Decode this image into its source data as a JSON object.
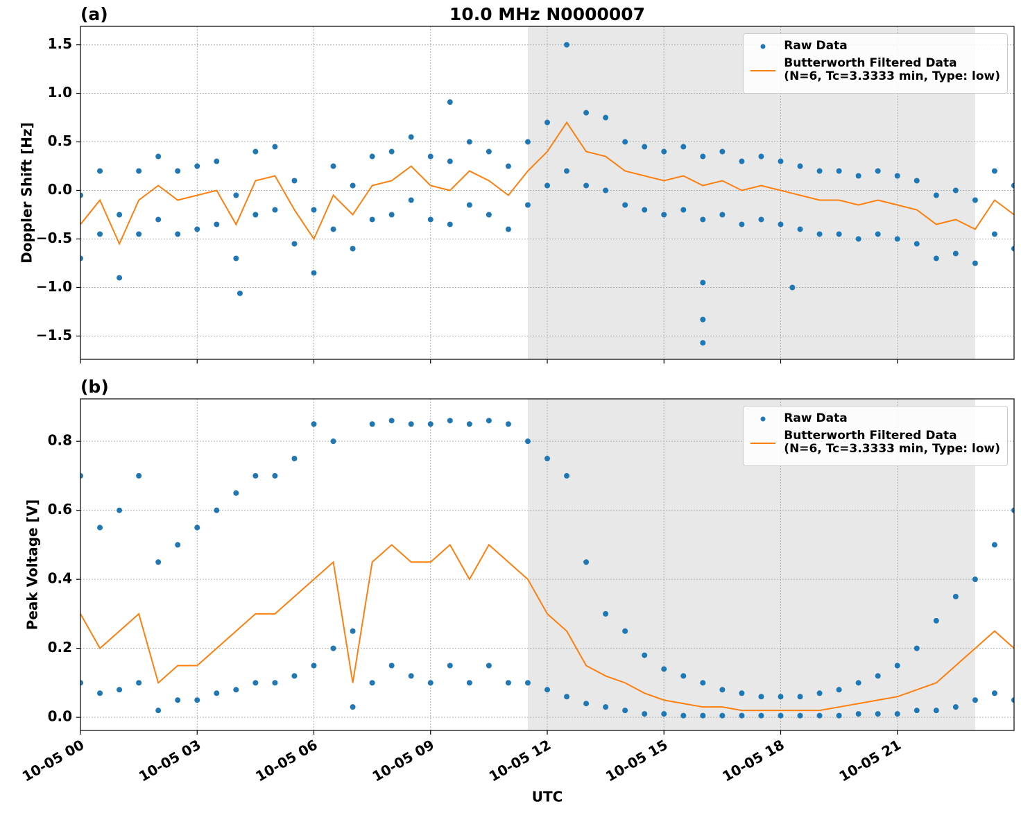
{
  "chart_data": [
    {
      "type": "scatter",
      "title": "10.0 MHz N0000007",
      "panel_label": "(a)",
      "ylabel": "Doppler Shift [Hz]",
      "xlim": [
        0,
        24
      ],
      "xticks": [
        0,
        3,
        6,
        9,
        12,
        15,
        18,
        21
      ],
      "ylim": [
        -1.74,
        1.69
      ],
      "yticks": [
        {
          "value": -1.5,
          "label": "−1.5"
        },
        {
          "value": -1.0,
          "label": "−1.0"
        },
        {
          "value": -0.5,
          "label": "−0.5"
        },
        {
          "value": 0,
          "label": "0.0"
        },
        {
          "value": 0.5,
          "label": "0.5"
        },
        {
          "value": 1.0,
          "label": "1.0"
        },
        {
          "value": 1.5,
          "label": "1.5"
        }
      ],
      "grid": true,
      "legend": "upper right",
      "shade": [
        11.5,
        23
      ],
      "shade_color": "#e8e8e8",
      "series": [
        {
          "name": "Raw Data",
          "style": "markers",
          "color": "#1f77b4",
          "x": [
            0,
            0.5,
            1,
            1.5,
            2,
            2.5,
            3,
            3.5,
            4,
            4.5,
            5,
            5.5,
            6,
            6.5,
            7,
            7.5,
            8,
            8.5,
            9,
            9.5,
            10,
            10.5,
            11,
            11.5,
            12,
            12.5,
            13,
            13.5,
            14,
            14.5,
            15,
            15.5,
            16,
            16.5,
            17,
            17.5,
            18,
            18.5,
            19,
            19.5,
            20,
            20.5,
            21,
            21.5,
            22,
            22.5,
            23,
            23.5,
            24,
            0,
            0.5,
            1,
            1.5,
            2,
            2.5,
            3,
            3.5,
            4,
            4.5,
            5,
            5.5,
            6,
            6.5,
            7,
            7.5,
            8,
            8.5,
            9,
            9.5,
            10,
            10.5,
            11,
            11.5,
            12,
            12.5,
            13,
            13.5,
            14,
            14.5,
            15,
            15.5,
            16,
            16.5,
            17,
            17.5,
            18,
            18.5,
            19,
            19.5,
            20,
            20.5,
            21,
            21.5,
            22,
            22.5,
            23,
            23.5,
            24,
            16,
            16,
            16,
            4.1,
            9.5,
            18.3
          ],
          "values": [
            -0.05,
            0.2,
            -0.25,
            0.2,
            0.35,
            0.2,
            0.25,
            0.3,
            -0.05,
            0.4,
            0.45,
            0.1,
            -0.2,
            0.25,
            0.05,
            0.35,
            0.4,
            0.55,
            0.35,
            0.3,
            0.5,
            0.4,
            0.25,
            0.5,
            0.7,
            1.5,
            0.8,
            0.75,
            0.5,
            0.45,
            0.4,
            0.45,
            0.35,
            0.4,
            0.3,
            0.35,
            0.3,
            0.25,
            0.2,
            0.2,
            0.15,
            0.2,
            0.15,
            0.1,
            -0.05,
            0.0,
            -0.1,
            0.2,
            0.05,
            -0.7,
            -0.45,
            -0.9,
            -0.45,
            -0.3,
            -0.45,
            -0.4,
            -0.35,
            -0.7,
            -0.25,
            -0.2,
            -0.55,
            -0.85,
            -0.4,
            -0.6,
            -0.3,
            -0.25,
            -0.1,
            -0.3,
            -0.35,
            -0.15,
            -0.25,
            -0.4,
            -0.15,
            0.05,
            0.2,
            0.05,
            0.0,
            -0.15,
            -0.2,
            -0.25,
            -0.2,
            -0.3,
            -0.25,
            -0.35,
            -0.3,
            -0.35,
            -0.4,
            -0.45,
            -0.45,
            -0.5,
            -0.45,
            -0.5,
            -0.55,
            -0.7,
            -0.65,
            -0.75,
            -0.45,
            -0.6,
            -1.57,
            -1.33,
            -0.95,
            -1.06,
            0.91,
            -1.0
          ]
        },
        {
          "name": "Butterworth Filtered Data\n(N=6, Tc=3.3333 min, Type: low)",
          "style": "line",
          "color": "#ff7f0e",
          "x": [
            0,
            0.5,
            1,
            1.5,
            2,
            2.5,
            3,
            3.5,
            4,
            4.5,
            5,
            5.5,
            6,
            6.5,
            7,
            7.5,
            8,
            8.5,
            9,
            9.5,
            10,
            10.5,
            11,
            11.5,
            12,
            12.5,
            13,
            13.5,
            14,
            14.5,
            15,
            15.5,
            16,
            16.5,
            17,
            17.5,
            18,
            18.5,
            19,
            19.5,
            20,
            20.5,
            21,
            21.5,
            22,
            22.5,
            23,
            23.5,
            24
          ],
          "values": [
            -0.35,
            -0.1,
            -0.55,
            -0.1,
            0.05,
            -0.1,
            -0.05,
            0.0,
            -0.35,
            0.1,
            0.15,
            -0.2,
            -0.5,
            -0.05,
            -0.25,
            0.05,
            0.1,
            0.25,
            0.05,
            0.0,
            0.2,
            0.1,
            -0.05,
            0.2,
            0.4,
            0.7,
            0.4,
            0.35,
            0.2,
            0.15,
            0.1,
            0.15,
            0.05,
            0.1,
            0.0,
            0.05,
            0.0,
            -0.05,
            -0.1,
            -0.1,
            -0.15,
            -0.1,
            -0.15,
            -0.2,
            -0.35,
            -0.3,
            -0.4,
            -0.1,
            -0.25
          ]
        }
      ]
    },
    {
      "type": "scatter",
      "panel_label": "(b)",
      "ylabel": "Peak Voltage [V]",
      "xlabel": "UTC",
      "xlim": [
        0,
        24
      ],
      "xticks": [
        {
          "value": 0,
          "label": "10-05 00"
        },
        {
          "value": 3,
          "label": "10-05 03"
        },
        {
          "value": 6,
          "label": "10-05 06"
        },
        {
          "value": 9,
          "label": "10-05 09"
        },
        {
          "value": 12,
          "label": "10-05 12"
        },
        {
          "value": 15,
          "label": "10-05 15"
        },
        {
          "value": 18,
          "label": "10-05 18"
        },
        {
          "value": 21,
          "label": "10-05 21"
        }
      ],
      "ylim": [
        -0.038,
        0.923
      ],
      "yticks": [
        {
          "value": 0,
          "label": "0.0"
        },
        {
          "value": 0.2,
          "label": "0.2"
        },
        {
          "value": 0.4,
          "label": "0.4"
        },
        {
          "value": 0.6,
          "label": "0.6"
        },
        {
          "value": 0.8,
          "label": "0.8"
        }
      ],
      "grid": true,
      "legend": "upper right",
      "shade": [
        11.5,
        23
      ],
      "shade_color": "#e8e8e8",
      "series": [
        {
          "name": "Raw Data",
          "style": "markers",
          "color": "#1f77b4",
          "x": [
            0,
            0.5,
            1,
            1.5,
            2,
            2.5,
            3,
            3.5,
            4,
            4.5,
            5,
            5.5,
            6,
            6.5,
            7,
            7.5,
            8,
            8.5,
            9,
            9.5,
            10,
            10.5,
            11,
            11.5,
            12,
            12.5,
            13,
            13.5,
            14,
            14.5,
            15,
            15.5,
            16,
            16.5,
            17,
            17.5,
            18,
            18.5,
            19,
            19.5,
            20,
            20.5,
            21,
            21.5,
            22,
            22.5,
            23,
            23.5,
            24,
            0,
            0.5,
            1,
            1.5,
            2,
            2.5,
            3,
            3.5,
            4,
            4.5,
            5,
            5.5,
            6,
            6.5,
            7,
            7.5,
            8,
            8.5,
            9,
            9.5,
            10,
            10.5,
            11,
            11.5,
            12,
            12.5,
            13,
            13.5,
            14,
            14.5,
            15,
            15.5,
            16,
            16.5,
            17,
            17.5,
            18,
            18.5,
            19,
            19.5,
            20,
            20.5,
            21,
            21.5,
            22,
            22.5,
            23,
            23.5,
            24
          ],
          "values": [
            0.7,
            0.55,
            0.6,
            0.7,
            0.45,
            0.5,
            0.55,
            0.6,
            0.65,
            0.7,
            0.7,
            0.75,
            0.85,
            0.8,
            0.25,
            0.85,
            0.86,
            0.85,
            0.85,
            0.86,
            0.85,
            0.86,
            0.85,
            0.8,
            0.75,
            0.7,
            0.45,
            0.3,
            0.25,
            0.18,
            0.14,
            0.12,
            0.1,
            0.08,
            0.07,
            0.06,
            0.06,
            0.06,
            0.07,
            0.08,
            0.1,
            0.12,
            0.15,
            0.2,
            0.28,
            0.35,
            0.4,
            0.5,
            0.6,
            0.1,
            0.07,
            0.08,
            0.1,
            0.02,
            0.05,
            0.05,
            0.07,
            0.08,
            0.1,
            0.1,
            0.12,
            0.15,
            0.2,
            0.03,
            0.1,
            0.15,
            0.12,
            0.1,
            0.15,
            0.1,
            0.15,
            0.1,
            0.1,
            0.08,
            0.06,
            0.04,
            0.03,
            0.02,
            0.01,
            0.01,
            0.005,
            0.005,
            0.005,
            0.005,
            0.005,
            0.005,
            0.005,
            0.005,
            0.005,
            0.01,
            0.01,
            0.01,
            0.02,
            0.02,
            0.03,
            0.05,
            0.07,
            0.05
          ]
        },
        {
          "name": "Butterworth Filtered Data\n(N=6, Tc=3.3333 min, Type: low)",
          "style": "line",
          "color": "#ff7f0e",
          "x": [
            0,
            0.5,
            1,
            1.5,
            2,
            2.5,
            3,
            3.5,
            4,
            4.5,
            5,
            5.5,
            6,
            6.5,
            7,
            7.5,
            8,
            8.5,
            9,
            9.5,
            10,
            10.5,
            11,
            11.5,
            12,
            12.5,
            13,
            13.5,
            14,
            14.5,
            15,
            15.5,
            16,
            16.5,
            17,
            17.5,
            18,
            18.5,
            19,
            19.5,
            20,
            20.5,
            21,
            21.5,
            22,
            22.5,
            23,
            23.5,
            24
          ],
          "values": [
            0.3,
            0.2,
            0.25,
            0.3,
            0.1,
            0.15,
            0.15,
            0.2,
            0.25,
            0.3,
            0.3,
            0.35,
            0.4,
            0.45,
            0.1,
            0.45,
            0.5,
            0.45,
            0.45,
            0.5,
            0.4,
            0.5,
            0.45,
            0.4,
            0.3,
            0.25,
            0.15,
            0.12,
            0.1,
            0.07,
            0.05,
            0.04,
            0.03,
            0.03,
            0.02,
            0.02,
            0.02,
            0.02,
            0.02,
            0.03,
            0.04,
            0.05,
            0.06,
            0.08,
            0.1,
            0.15,
            0.2,
            0.25,
            0.2
          ]
        }
      ]
    }
  ]
}
